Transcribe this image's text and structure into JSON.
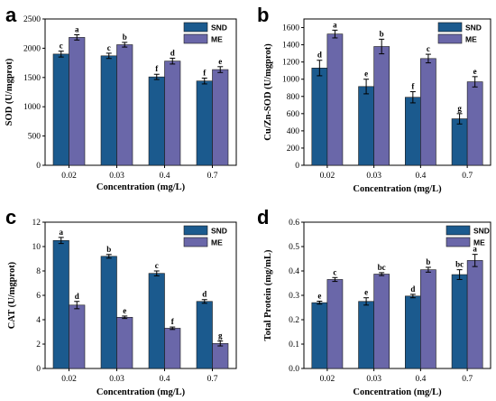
{
  "colors": {
    "SND": "#1b5a8e",
    "ME": "#6a67a9"
  },
  "chart_data": [
    {
      "panel": "a",
      "type": "bar",
      "categories": [
        "0.02",
        "0.03",
        "0.4",
        "0.7"
      ],
      "xlabel": "Concentration (mg/L)",
      "ylabel": "SOD (U/mgprot)",
      "ylim": [
        0,
        2500
      ],
      "yticks": [
        0,
        500,
        1000,
        1500,
        2000,
        2500
      ],
      "legend": "top-right",
      "series": [
        {
          "name": "SND",
          "values": [
            1900,
            1870,
            1510,
            1440
          ],
          "errors": [
            50,
            45,
            45,
            50
          ],
          "labels": [
            "c",
            "c",
            "f",
            "f"
          ]
        },
        {
          "name": "ME",
          "values": [
            2185,
            2060,
            1780,
            1635
          ],
          "errors": [
            45,
            40,
            50,
            50
          ],
          "labels": [
            "a",
            "b",
            "d",
            "e"
          ]
        }
      ]
    },
    {
      "panel": "b",
      "type": "bar",
      "categories": [
        "0.02",
        "0.03",
        "0.4",
        "0.7"
      ],
      "xlabel": "Concentration (mg/L)",
      "ylabel": "Cu/Zn-SOD (U/mgprot)",
      "ylim": [
        0,
        1700
      ],
      "yticks": [
        0,
        200,
        400,
        600,
        800,
        1000,
        1200,
        1400,
        1600
      ],
      "legend": "top-right",
      "series": [
        {
          "name": "SND",
          "values": [
            1130,
            915,
            790,
            540
          ],
          "errors": [
            90,
            85,
            65,
            60
          ],
          "labels": [
            "d",
            "e",
            "f",
            "g"
          ]
        },
        {
          "name": "ME",
          "values": [
            1525,
            1380,
            1240,
            970
          ],
          "errors": [
            45,
            85,
            50,
            60
          ],
          "labels": [
            "a",
            "b",
            "c",
            "e"
          ]
        }
      ]
    },
    {
      "panel": "c",
      "type": "bar",
      "categories": [
        "0.02",
        "0.03",
        "0.4",
        "0.7"
      ],
      "xlabel": "Concentration (mg/L)",
      "ylabel": "CAT (U/mgprot)",
      "ylim": [
        0,
        12
      ],
      "yticks": [
        0,
        2,
        4,
        6,
        8,
        10,
        12
      ],
      "legend": "top-right",
      "series": [
        {
          "name": "SND",
          "values": [
            10.5,
            9.2,
            7.8,
            5.5
          ],
          "errors": [
            0.25,
            0.15,
            0.2,
            0.15
          ],
          "labels": [
            "a",
            "b",
            "c",
            "d"
          ]
        },
        {
          "name": "ME",
          "values": [
            5.2,
            4.2,
            3.3,
            2.05
          ],
          "errors": [
            0.3,
            0.1,
            0.1,
            0.2
          ],
          "labels": [
            "d",
            "e",
            "f",
            "g"
          ]
        }
      ]
    },
    {
      "panel": "d",
      "type": "bar",
      "categories": [
        "0.02",
        "0.03",
        "0.4",
        "0.7"
      ],
      "xlabel": "Concentration (mg/L)",
      "ylabel": "Total Protein (mg/mL)",
      "ylim": [
        0,
        0.6
      ],
      "yticks": [
        0.0,
        0.1,
        0.2,
        0.3,
        0.4,
        0.5,
        0.6
      ],
      "legend": "top-left",
      "series": [
        {
          "name": "SND",
          "values": [
            0.27,
            0.275,
            0.297,
            0.385
          ],
          "errors": [
            0.006,
            0.015,
            0.007,
            0.02
          ],
          "labels": [
            "e",
            "e",
            "d",
            "bc"
          ]
        },
        {
          "name": "ME",
          "values": [
            0.365,
            0.387,
            0.405,
            0.443
          ],
          "errors": [
            0.008,
            0.006,
            0.01,
            0.025
          ],
          "labels": [
            "c",
            "bc",
            "b",
            "a"
          ]
        }
      ]
    }
  ]
}
